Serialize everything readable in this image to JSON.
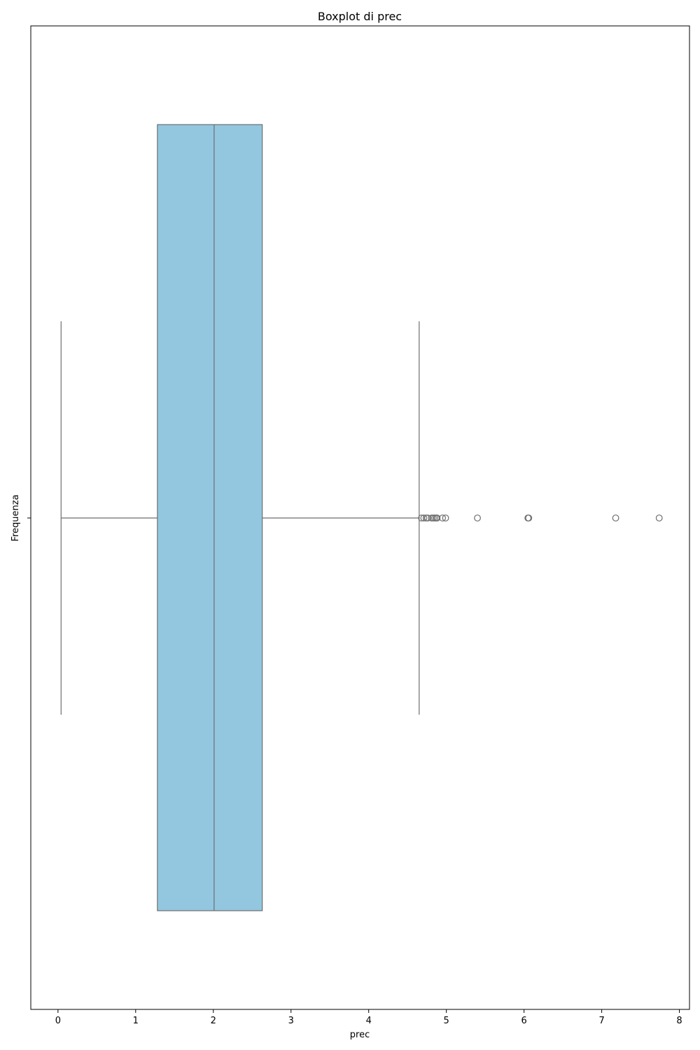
{
  "chart_data": {
    "type": "boxplot",
    "orientation": "horizontal",
    "title": "Boxplot di prec",
    "xlabel": "prec",
    "ylabel": "Frequenza",
    "xlim": [
      -0.35,
      8.13
    ],
    "xticks": [
      "0",
      "1",
      "2",
      "3",
      "4",
      "5",
      "6",
      "7",
      "8"
    ],
    "xtick_values": [
      0,
      1,
      2,
      3,
      4,
      5,
      6,
      7,
      8
    ],
    "grid": false,
    "box": {
      "whisker_low": 0.04,
      "q1": 1.28,
      "median": 2.01,
      "q3": 2.63,
      "whisker_high": 4.65,
      "fill_color": "#92c7df",
      "line_color": "#6e6e6e"
    },
    "outliers": [
      4.68,
      4.71,
      4.74,
      4.76,
      4.81,
      4.83,
      4.85,
      4.87,
      4.88,
      4.95,
      4.99,
      5.4,
      6.05,
      6.06,
      7.18,
      7.74
    ]
  }
}
